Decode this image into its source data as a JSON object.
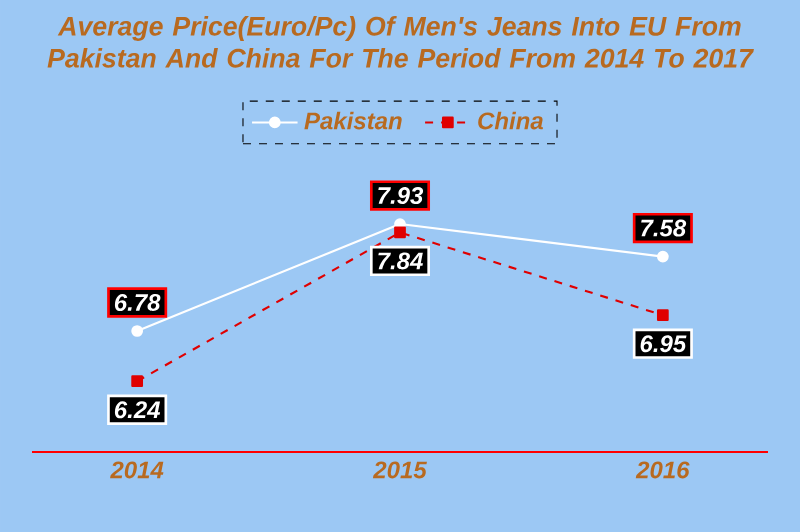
{
  "chart_data": {
    "type": "line",
    "title": "Average Price(Euro/Pc) Of Men's Jeans Into EU From Pakistan And China For The Period From 2014 To 2017",
    "categories": [
      "2014",
      "2015",
      "2016"
    ],
    "series": [
      {
        "name": "Pakistan",
        "color": "#ffffff",
        "marker": "circle",
        "line_style": "solid",
        "values": [
          6.78,
          7.93,
          7.58
        ]
      },
      {
        "name": "China",
        "color": "#e00000",
        "marker": "square",
        "line_style": "dashed",
        "values": [
          6.24,
          7.84,
          6.95
        ]
      }
    ],
    "data_labels": true,
    "legend": "top"
  }
}
